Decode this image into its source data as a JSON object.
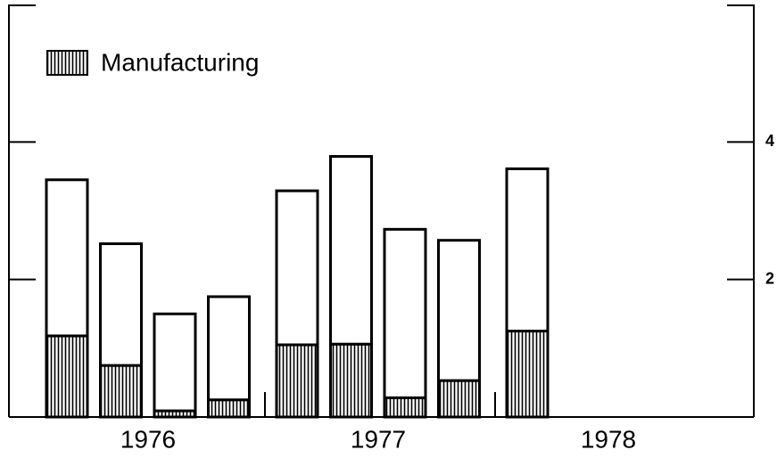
{
  "chart_data": {
    "type": "stacked-bar",
    "groups": [
      "1976",
      "1977",
      "1978"
    ],
    "categories": [
      null,
      null,
      null,
      null,
      null,
      null,
      null,
      null,
      null,
      null,
      null,
      null
    ],
    "series": [
      {
        "name": "Manufacturing",
        "color": "#000000",
        "values": [
          1.18,
          0.75,
          0.09,
          0.25,
          1.05,
          1.06,
          0.28,
          0.53,
          1.25,
          null,
          null,
          null
        ]
      },
      {
        "color": "#ffffff",
        "values": [
          2.27,
          1.77,
          1.41,
          1.5,
          2.24,
          2.73,
          2.45,
          2.04,
          2.36,
          null,
          null,
          null
        ]
      }
    ],
    "ylim": [
      0,
      6
    ],
    "yticks": [
      2,
      4
    ],
    "legend": "top-left"
  }
}
